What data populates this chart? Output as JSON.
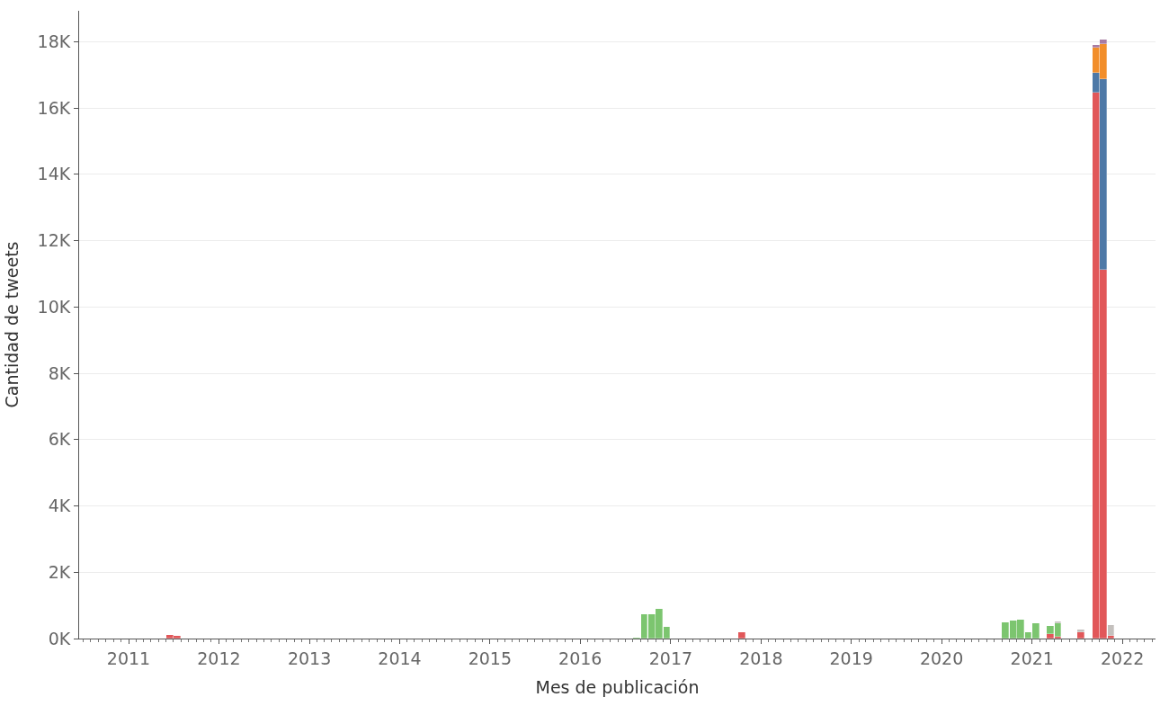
{
  "chart_data": {
    "type": "bar",
    "stacked": true,
    "xlabel": "Mes de publicación",
    "ylabel": "Cantidad de tweets",
    "x": [
      "2011-06",
      "2011-07",
      "2016-08",
      "2016-09",
      "2016-10",
      "2016-11",
      "2016-12",
      "2017-10",
      "2020-09",
      "2020-10",
      "2020-11",
      "2020-12",
      "2021-01",
      "2021-03",
      "2021-04",
      "2021-07",
      "2021-09",
      "2021-10",
      "2021-11"
    ],
    "series": [
      {
        "color": "#e15759",
        "values": [
          100,
          80,
          null,
          null,
          null,
          null,
          null,
          190,
          null,
          null,
          null,
          null,
          null,
          130,
          60,
          180,
          16460,
          11120,
          90
        ]
      },
      {
        "color": "#7cc56f",
        "values": [
          null,
          null,
          40,
          720,
          720,
          900,
          350,
          null,
          490,
          530,
          580,
          200,
          450,
          240,
          410,
          null,
          null,
          null,
          null
        ]
      },
      {
        "color": "#4e79a7",
        "values": [
          null,
          null,
          null,
          null,
          null,
          null,
          null,
          null,
          null,
          null,
          null,
          null,
          null,
          null,
          null,
          null,
          600,
          5740,
          null
        ]
      },
      {
        "color": "#f28e2b",
        "values": [
          null,
          null,
          null,
          null,
          null,
          null,
          null,
          null,
          null,
          null,
          null,
          null,
          null,
          null,
          null,
          null,
          750,
          1080,
          null
        ]
      },
      {
        "color": "#a87ba3",
        "values": [
          null,
          null,
          null,
          null,
          null,
          null,
          null,
          null,
          null,
          null,
          null,
          null,
          null,
          null,
          null,
          null,
          90,
          130,
          null
        ]
      },
      {
        "color": "#c4c0bd",
        "values": [
          null,
          null,
          null,
          null,
          null,
          null,
          null,
          null,
          null,
          null,
          null,
          null,
          null,
          null,
          50,
          90,
          null,
          null,
          330
        ]
      }
    ],
    "xlim": [
      "2010-06-15",
      "2022-05-15"
    ],
    "xticks": [
      "2011",
      "2012",
      "2013",
      "2014",
      "2015",
      "2016",
      "2017",
      "2018",
      "2019",
      "2020",
      "2021",
      "2022"
    ],
    "ylim": [
      0,
      18930
    ],
    "yticks": [
      {
        "value": 0,
        "label": "0K"
      },
      {
        "value": 2000,
        "label": "2K"
      },
      {
        "value": 4000,
        "label": "4K"
      },
      {
        "value": 6000,
        "label": "6K"
      },
      {
        "value": 8000,
        "label": "8K"
      },
      {
        "value": 10000,
        "label": "10K"
      },
      {
        "value": 12000,
        "label": "12K"
      },
      {
        "value": 14000,
        "label": "14K"
      },
      {
        "value": 16000,
        "label": "16K"
      },
      {
        "value": 18000,
        "label": "18K"
      }
    ],
    "grid": "y"
  }
}
